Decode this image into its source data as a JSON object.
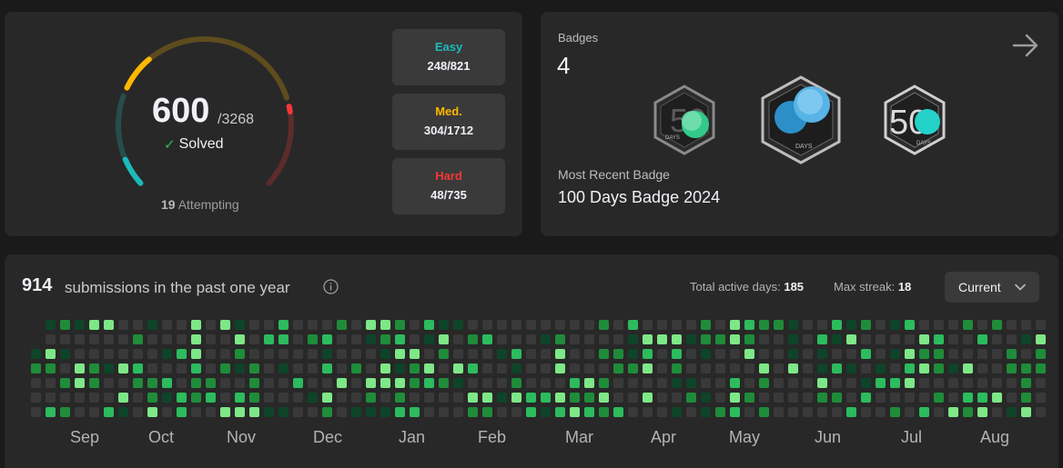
{
  "progress": {
    "solved": "600",
    "total": "/3268",
    "solved_label": "Solved",
    "attempting_count": "19",
    "attempting_label": "Attempting",
    "difficulty": [
      {
        "key": "easy",
        "label": "Easy",
        "value": "248/821",
        "color": "#1cbaba",
        "solved": 248,
        "total": 821
      },
      {
        "key": "med",
        "label": "Med.",
        "value": "304/1712",
        "color": "#ffb700",
        "solved": 304,
        "total": 1712
      },
      {
        "key": "hard",
        "label": "Hard",
        "value": "48/735",
        "color": "#f63737",
        "solved": 48,
        "total": 735
      }
    ]
  },
  "badges": {
    "title": "Badges",
    "count": "4",
    "recent_label": "Most Recent Badge",
    "recent_name": "100 Days Badge 2024",
    "items": [
      {
        "name": "50-days-badge",
        "text_small": "DAYS",
        "text_big": "50"
      },
      {
        "name": "100-days-badge",
        "text_small": "DAYS"
      },
      {
        "name": "50-days-badge",
        "text_small": "DAYS",
        "text_big": "50"
      }
    ]
  },
  "calendar": {
    "submissions": "914",
    "submissions_text": "submissions in the past one year",
    "active_label": "Total active days:",
    "active_value": "185",
    "streak_label": "Max streak:",
    "streak_value": "18",
    "dropdown_value": "Current",
    "months": [
      "Sep",
      "Oct",
      "Nov",
      "Dec",
      "Jan",
      "Feb",
      "Mar",
      "Apr",
      "May",
      "Jun",
      "Jul",
      "Aug"
    ],
    "colors": {
      "empty": "#393939",
      "l1": "#0e4429",
      "l2": "#1f8c3a",
      "l3": "#2cbb5d",
      "l4": "#7ee787"
    }
  }
}
